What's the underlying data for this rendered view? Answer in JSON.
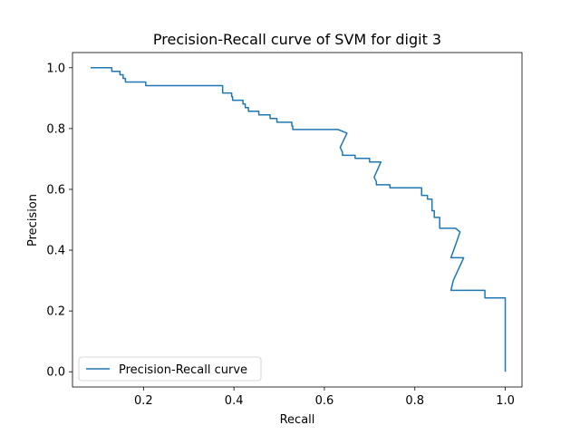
{
  "chart_data": {
    "type": "line",
    "title": "Precision-Recall curve of SVM for digit 3",
    "xlabel": "Recall",
    "ylabel": "Precision",
    "xlim": [
      0.043,
      1.037
    ],
    "ylim": [
      -0.05,
      1.05
    ],
    "xticks": [
      "0.2",
      "0.4",
      "0.6",
      "0.8",
      "1.0"
    ],
    "xtick_values": [
      0.2,
      0.4,
      0.6,
      0.8,
      1.0
    ],
    "yticks": [
      "0.0",
      "0.2",
      "0.4",
      "0.6",
      "0.8",
      "1.0"
    ],
    "ytick_values": [
      0.0,
      0.2,
      0.4,
      0.6,
      0.8,
      1.0
    ],
    "grid": false,
    "legend_position": "lower-left",
    "series": [
      {
        "name": "Precision-Recall curve",
        "color": "#1f77b4",
        "x": [
          0.083,
          0.13,
          0.13,
          0.148,
          0.148,
          0.155,
          0.155,
          0.16,
          0.16,
          0.205,
          0.205,
          0.375,
          0.375,
          0.395,
          0.395,
          0.397,
          0.397,
          0.42,
          0.42,
          0.425,
          0.425,
          0.432,
          0.432,
          0.455,
          0.455,
          0.48,
          0.48,
          0.495,
          0.495,
          0.528,
          0.528,
          0.53,
          0.53,
          0.63,
          0.65,
          0.635,
          0.64,
          0.64,
          0.668,
          0.668,
          0.7,
          0.7,
          0.725,
          0.71,
          0.715,
          0.715,
          0.745,
          0.745,
          0.815,
          0.815,
          0.828,
          0.828,
          0.838,
          0.838,
          0.843,
          0.843,
          0.855,
          0.855,
          0.89,
          0.9,
          0.893,
          0.88,
          0.89,
          0.908,
          0.885,
          0.88,
          0.955,
          0.955,
          1.0,
          1.0
        ],
        "y": [
          1.0,
          1.0,
          0.988,
          0.988,
          0.977,
          0.977,
          0.965,
          0.965,
          0.953,
          0.953,
          0.941,
          0.941,
          0.917,
          0.917,
          0.905,
          0.905,
          0.893,
          0.893,
          0.881,
          0.881,
          0.869,
          0.869,
          0.857,
          0.857,
          0.845,
          0.845,
          0.833,
          0.833,
          0.821,
          0.821,
          0.809,
          0.809,
          0.797,
          0.797,
          0.785,
          0.738,
          0.722,
          0.712,
          0.712,
          0.702,
          0.702,
          0.69,
          0.69,
          0.64,
          0.625,
          0.615,
          0.615,
          0.605,
          0.605,
          0.58,
          0.58,
          0.568,
          0.568,
          0.53,
          0.53,
          0.508,
          0.508,
          0.472,
          0.472,
          0.46,
          0.43,
          0.375,
          0.375,
          0.375,
          0.3,
          0.268,
          0.268,
          0.243,
          0.243,
          0.0
        ]
      }
    ]
  }
}
